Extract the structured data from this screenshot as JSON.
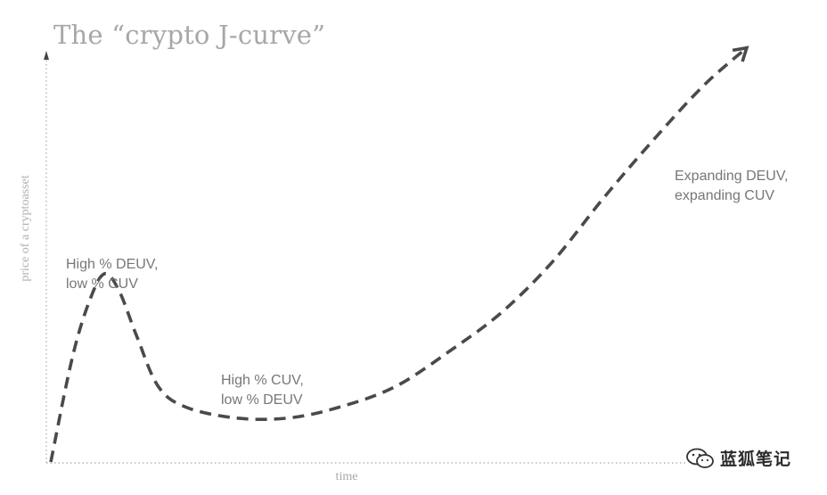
{
  "chart_data": {
    "type": "line",
    "title": "The “crypto J-curve”",
    "xlabel": "time",
    "ylabel": "price of a cryptoasset",
    "grid": false,
    "legend": "none",
    "xlim": [
      0,
      100
    ],
    "ylim": [
      0,
      100
    ],
    "series": [
      {
        "style": "dashed",
        "color": "#4a4a4a",
        "arrow_end": true,
        "points": [
          [
            0,
            0
          ],
          [
            3,
            25
          ],
          [
            5.5,
            39
          ],
          [
            7.5,
            45
          ],
          [
            9.5,
            41
          ],
          [
            12,
            30
          ],
          [
            15,
            18
          ],
          [
            19,
            13
          ],
          [
            26,
            10.5
          ],
          [
            33,
            10.5
          ],
          [
            40,
            13
          ],
          [
            48,
            18
          ],
          [
            56,
            27
          ],
          [
            63,
            36
          ],
          [
            70,
            48
          ],
          [
            77,
            63
          ],
          [
            84,
            77
          ],
          [
            91,
            90
          ],
          [
            97,
            99
          ]
        ]
      }
    ],
    "annotations": [
      {
        "lines": [
          "High % DEUV,",
          "low % CUV"
        ]
      },
      {
        "lines": [
          "High % CUV,",
          "low % DEUV"
        ]
      },
      {
        "lines": [
          "Expanding DEUV,",
          "expanding CUV"
        ]
      }
    ]
  },
  "watermark": {
    "text": "蓝狐笔记"
  }
}
